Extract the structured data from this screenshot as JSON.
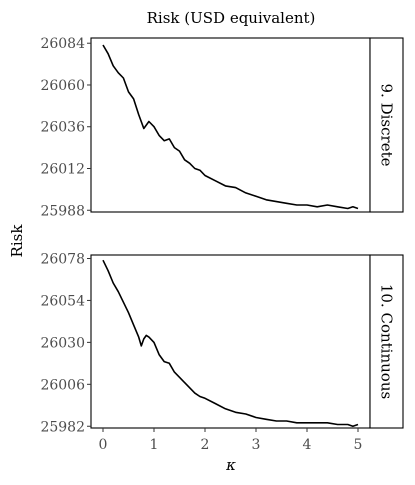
{
  "chart_data": {
    "type": "line",
    "title": "Risk (USD equivalent)",
    "xlabel": "κ",
    "ylabel": "Risk",
    "xlim": [
      0,
      5
    ],
    "xticks": [
      0,
      1,
      2,
      3,
      4,
      5
    ],
    "grid": false,
    "panels": [
      {
        "strip": "9. Discrete",
        "ylim": [
          25987,
          26087
        ],
        "yticks": [
          26084,
          26060,
          26036,
          26012,
          25988
        ],
        "x": [
          0,
          0.1,
          0.2,
          0.3,
          0.4,
          0.5,
          0.6,
          0.7,
          0.8,
          0.9,
          1.0,
          1.1,
          1.2,
          1.3,
          1.4,
          1.5,
          1.6,
          1.7,
          1.8,
          1.9,
          2.0,
          2.2,
          2.4,
          2.6,
          2.8,
          3.0,
          3.2,
          3.4,
          3.6,
          3.8,
          4.0,
          4.2,
          4.4,
          4.6,
          4.8,
          4.9,
          5.0
        ],
        "y": [
          26083,
          26078,
          26071,
          26067,
          26064,
          26056,
          26052,
          26043,
          26035,
          26039,
          26036,
          26031,
          26028,
          26029,
          26024,
          26022,
          26017,
          26015,
          26012,
          26011,
          26008,
          26005,
          26002,
          26001,
          25998,
          25996,
          25994,
          25993,
          25992,
          25991,
          25991,
          25990,
          25991,
          25990,
          25989,
          25990,
          25989
        ]
      },
      {
        "strip": "10. Continuous",
        "ylim": [
          25981,
          26080
        ],
        "yticks": [
          26078,
          26054,
          26030,
          26006,
          25982
        ],
        "x": [
          0,
          0.1,
          0.2,
          0.3,
          0.4,
          0.5,
          0.6,
          0.7,
          0.75,
          0.8,
          0.85,
          0.9,
          1.0,
          1.1,
          1.2,
          1.3,
          1.4,
          1.5,
          1.6,
          1.7,
          1.8,
          1.9,
          2.0,
          2.2,
          2.4,
          2.6,
          2.8,
          3.0,
          3.2,
          3.4,
          3.6,
          3.8,
          4.0,
          4.2,
          4.4,
          4.6,
          4.8,
          4.9,
          5.0
        ],
        "y": [
          26077,
          26071,
          26064,
          26059,
          26053,
          26047,
          26040,
          26033,
          26028,
          26032,
          26034,
          26033,
          26030,
          26023,
          26019,
          26018,
          26013,
          26010,
          26007,
          26004,
          26001,
          25999,
          25998,
          25995,
          25992,
          25990,
          25989,
          25987,
          25986,
          25985,
          25985,
          25984,
          25984,
          25984,
          25984,
          25983,
          25983,
          25982,
          25983
        ]
      }
    ]
  }
}
